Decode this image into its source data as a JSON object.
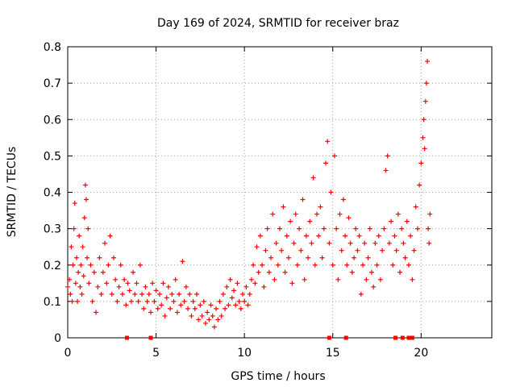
{
  "chart_data": {
    "type": "scatter",
    "title": "Day 169 of 2024, SRMTID for receiver braz",
    "xlabel": "GPS time / hours",
    "ylabel": "SRMTID / TECUs",
    "xlim": [
      0,
      24
    ],
    "ylim": [
      0,
      0.8
    ],
    "xticks": [
      0,
      5,
      10,
      15,
      20
    ],
    "yticks": [
      0,
      0.1,
      0.2,
      0.3,
      0.4,
      0.5,
      0.6,
      0.7,
      0.8
    ],
    "grid": true,
    "marker": "plus",
    "color": "#ff0000",
    "series": [
      {
        "name": "braz",
        "points": [
          [
            0.0,
            0.14
          ],
          [
            0.1,
            0.16
          ],
          [
            0.15,
            0.12
          ],
          [
            0.2,
            0.25
          ],
          [
            0.25,
            0.1
          ],
          [
            0.3,
            0.2
          ],
          [
            0.35,
            0.3
          ],
          [
            0.4,
            0.37
          ],
          [
            0.45,
            0.15
          ],
          [
            0.5,
            0.22
          ],
          [
            0.55,
            0.1
          ],
          [
            0.6,
            0.18
          ],
          [
            0.65,
            0.28
          ],
          [
            0.7,
            0.14
          ],
          [
            0.75,
            0.2
          ],
          [
            0.8,
            0.12
          ],
          [
            0.85,
            0.25
          ],
          [
            0.9,
            0.17
          ],
          [
            0.95,
            0.33
          ],
          [
            1.0,
            0.42
          ],
          [
            1.05,
            0.38
          ],
          [
            1.1,
            0.22
          ],
          [
            1.15,
            0.3
          ],
          [
            1.2,
            0.15
          ],
          [
            1.3,
            0.2
          ],
          [
            1.4,
            0.1
          ],
          [
            1.5,
            0.18
          ],
          [
            1.6,
            0.07
          ],
          [
            1.7,
            0.14
          ],
          [
            1.8,
            0.22
          ],
          [
            1.9,
            0.12
          ],
          [
            2.0,
            0.18
          ],
          [
            2.1,
            0.26
          ],
          [
            2.2,
            0.15
          ],
          [
            2.3,
            0.2
          ],
          [
            2.4,
            0.28
          ],
          [
            2.5,
            0.12
          ],
          [
            2.6,
            0.22
          ],
          [
            2.7,
            0.16
          ],
          [
            2.8,
            0.1
          ],
          [
            2.9,
            0.14
          ],
          [
            3.0,
            0.2
          ],
          [
            3.1,
            0.12
          ],
          [
            3.2,
            0.16
          ],
          [
            3.3,
            0.09
          ],
          [
            3.4,
            0.15
          ],
          [
            3.5,
            0.13
          ],
          [
            3.6,
            0.1
          ],
          [
            3.7,
            0.18
          ],
          [
            3.8,
            0.12
          ],
          [
            3.9,
            0.15
          ],
          [
            4.0,
            0.1
          ],
          [
            4.1,
            0.2
          ],
          [
            4.2,
            0.12
          ],
          [
            4.3,
            0.08
          ],
          [
            4.4,
            0.14
          ],
          [
            4.5,
            0.1
          ],
          [
            4.6,
            0.12
          ],
          [
            4.7,
            0.07
          ],
          [
            4.8,
            0.15
          ],
          [
            4.9,
            0.1
          ],
          [
            5.0,
            0.13
          ],
          [
            5.1,
            0.08
          ],
          [
            5.2,
            0.12
          ],
          [
            5.3,
            0.09
          ],
          [
            5.4,
            0.15
          ],
          [
            5.5,
            0.06
          ],
          [
            5.6,
            0.11
          ],
          [
            5.7,
            0.14
          ],
          [
            5.8,
            0.08
          ],
          [
            5.9,
            0.12
          ],
          [
            6.0,
            0.1
          ],
          [
            6.1,
            0.16
          ],
          [
            6.2,
            0.07
          ],
          [
            6.3,
            0.12
          ],
          [
            6.4,
            0.09
          ],
          [
            6.5,
            0.21
          ],
          [
            6.6,
            0.1
          ],
          [
            6.7,
            0.14
          ],
          [
            6.8,
            0.08
          ],
          [
            6.9,
            0.12
          ],
          [
            7.0,
            0.06
          ],
          [
            7.1,
            0.1
          ],
          [
            7.2,
            0.08
          ],
          [
            7.3,
            0.12
          ],
          [
            7.4,
            0.05
          ],
          [
            7.5,
            0.09
          ],
          [
            7.6,
            0.06
          ],
          [
            7.7,
            0.1
          ],
          [
            7.8,
            0.04
          ],
          [
            7.9,
            0.07
          ],
          [
            8.0,
            0.05
          ],
          [
            8.1,
            0.09
          ],
          [
            8.2,
            0.06
          ],
          [
            8.3,
            0.03
          ],
          [
            8.4,
            0.08
          ],
          [
            8.5,
            0.05
          ],
          [
            8.6,
            0.1
          ],
          [
            8.7,
            0.06
          ],
          [
            8.8,
            0.12
          ],
          [
            8.9,
            0.08
          ],
          [
            9.0,
            0.14
          ],
          [
            9.1,
            0.09
          ],
          [
            9.2,
            0.16
          ],
          [
            9.3,
            0.11
          ],
          [
            9.4,
            0.13
          ],
          [
            9.5,
            0.09
          ],
          [
            9.6,
            0.15
          ],
          [
            9.7,
            0.1
          ],
          [
            9.8,
            0.08
          ],
          [
            9.9,
            0.12
          ],
          [
            10.0,
            0.1
          ],
          [
            10.1,
            0.14
          ],
          [
            10.2,
            0.09
          ],
          [
            10.3,
            0.12
          ],
          [
            10.4,
            0.16
          ],
          [
            10.5,
            0.2
          ],
          [
            10.6,
            0.15
          ],
          [
            10.7,
            0.25
          ],
          [
            10.8,
            0.18
          ],
          [
            10.9,
            0.28
          ],
          [
            11.0,
            0.2
          ],
          [
            11.1,
            0.14
          ],
          [
            11.2,
            0.24
          ],
          [
            11.3,
            0.3
          ],
          [
            11.4,
            0.18
          ],
          [
            11.5,
            0.22
          ],
          [
            11.6,
            0.34
          ],
          [
            11.7,
            0.16
          ],
          [
            11.8,
            0.26
          ],
          [
            11.9,
            0.2
          ],
          [
            12.0,
            0.3
          ],
          [
            12.1,
            0.24
          ],
          [
            12.2,
            0.36
          ],
          [
            12.3,
            0.18
          ],
          [
            12.4,
            0.28
          ],
          [
            12.5,
            0.22
          ],
          [
            12.6,
            0.32
          ],
          [
            12.7,
            0.15
          ],
          [
            12.8,
            0.26
          ],
          [
            12.9,
            0.34
          ],
          [
            13.0,
            0.2
          ],
          [
            13.1,
            0.3
          ],
          [
            13.2,
            0.24
          ],
          [
            13.3,
            0.38
          ],
          [
            13.4,
            0.16
          ],
          [
            13.5,
            0.28
          ],
          [
            13.6,
            0.22
          ],
          [
            13.7,
            0.32
          ],
          [
            13.8,
            0.26
          ],
          [
            13.9,
            0.44
          ],
          [
            14.0,
            0.2
          ],
          [
            14.1,
            0.34
          ],
          [
            14.2,
            0.28
          ],
          [
            14.3,
            0.36
          ],
          [
            14.4,
            0.22
          ],
          [
            14.5,
            0.3
          ],
          [
            14.6,
            0.48
          ],
          [
            14.7,
            0.54
          ],
          [
            14.8,
            0.26
          ],
          [
            14.9,
            0.4
          ],
          [
            15.0,
            0.2
          ],
          [
            15.1,
            0.5
          ],
          [
            15.2,
            0.3
          ],
          [
            15.3,
            0.16
          ],
          [
            15.4,
            0.34
          ],
          [
            15.5,
            0.24
          ],
          [
            15.6,
            0.38
          ],
          [
            15.7,
            0.28
          ],
          [
            15.8,
            0.2
          ],
          [
            15.9,
            0.33
          ],
          [
            16.0,
            0.26
          ],
          [
            16.1,
            0.18
          ],
          [
            16.2,
            0.22
          ],
          [
            16.3,
            0.3
          ],
          [
            16.4,
            0.24
          ],
          [
            16.5,
            0.28
          ],
          [
            16.6,
            0.12
          ],
          [
            16.7,
            0.2
          ],
          [
            16.8,
            0.26
          ],
          [
            16.9,
            0.16
          ],
          [
            17.0,
            0.22
          ],
          [
            17.1,
            0.3
          ],
          [
            17.2,
            0.18
          ],
          [
            17.3,
            0.14
          ],
          [
            17.4,
            0.26
          ],
          [
            17.5,
            0.2
          ],
          [
            17.6,
            0.28
          ],
          [
            17.7,
            0.16
          ],
          [
            17.8,
            0.24
          ],
          [
            17.9,
            0.3
          ],
          [
            18.0,
            0.46
          ],
          [
            18.1,
            0.5
          ],
          [
            18.2,
            0.26
          ],
          [
            18.3,
            0.32
          ],
          [
            18.4,
            0.2
          ],
          [
            18.5,
            0.28
          ],
          [
            18.6,
            0.24
          ],
          [
            18.7,
            0.34
          ],
          [
            18.8,
            0.18
          ],
          [
            18.9,
            0.3
          ],
          [
            19.0,
            0.26
          ],
          [
            19.1,
            0.22
          ],
          [
            19.2,
            0.32
          ],
          [
            19.3,
            0.2
          ],
          [
            19.4,
            0.28
          ],
          [
            19.5,
            0.16
          ],
          [
            19.6,
            0.24
          ],
          [
            19.7,
            0.36
          ],
          [
            19.8,
            0.3
          ],
          [
            19.9,
            0.42
          ],
          [
            20.0,
            0.48
          ],
          [
            20.1,
            0.55
          ],
          [
            20.15,
            0.6
          ],
          [
            20.2,
            0.52
          ],
          [
            20.25,
            0.65
          ],
          [
            20.3,
            0.7
          ],
          [
            20.35,
            0.76
          ],
          [
            20.4,
            0.3
          ],
          [
            20.45,
            0.26
          ],
          [
            20.5,
            0.34
          ]
        ]
      }
    ],
    "gap_markers_x": [
      3.35,
      4.7,
      14.8,
      15.75,
      18.55,
      18.95,
      19.3,
      19.45,
      19.5
    ]
  }
}
